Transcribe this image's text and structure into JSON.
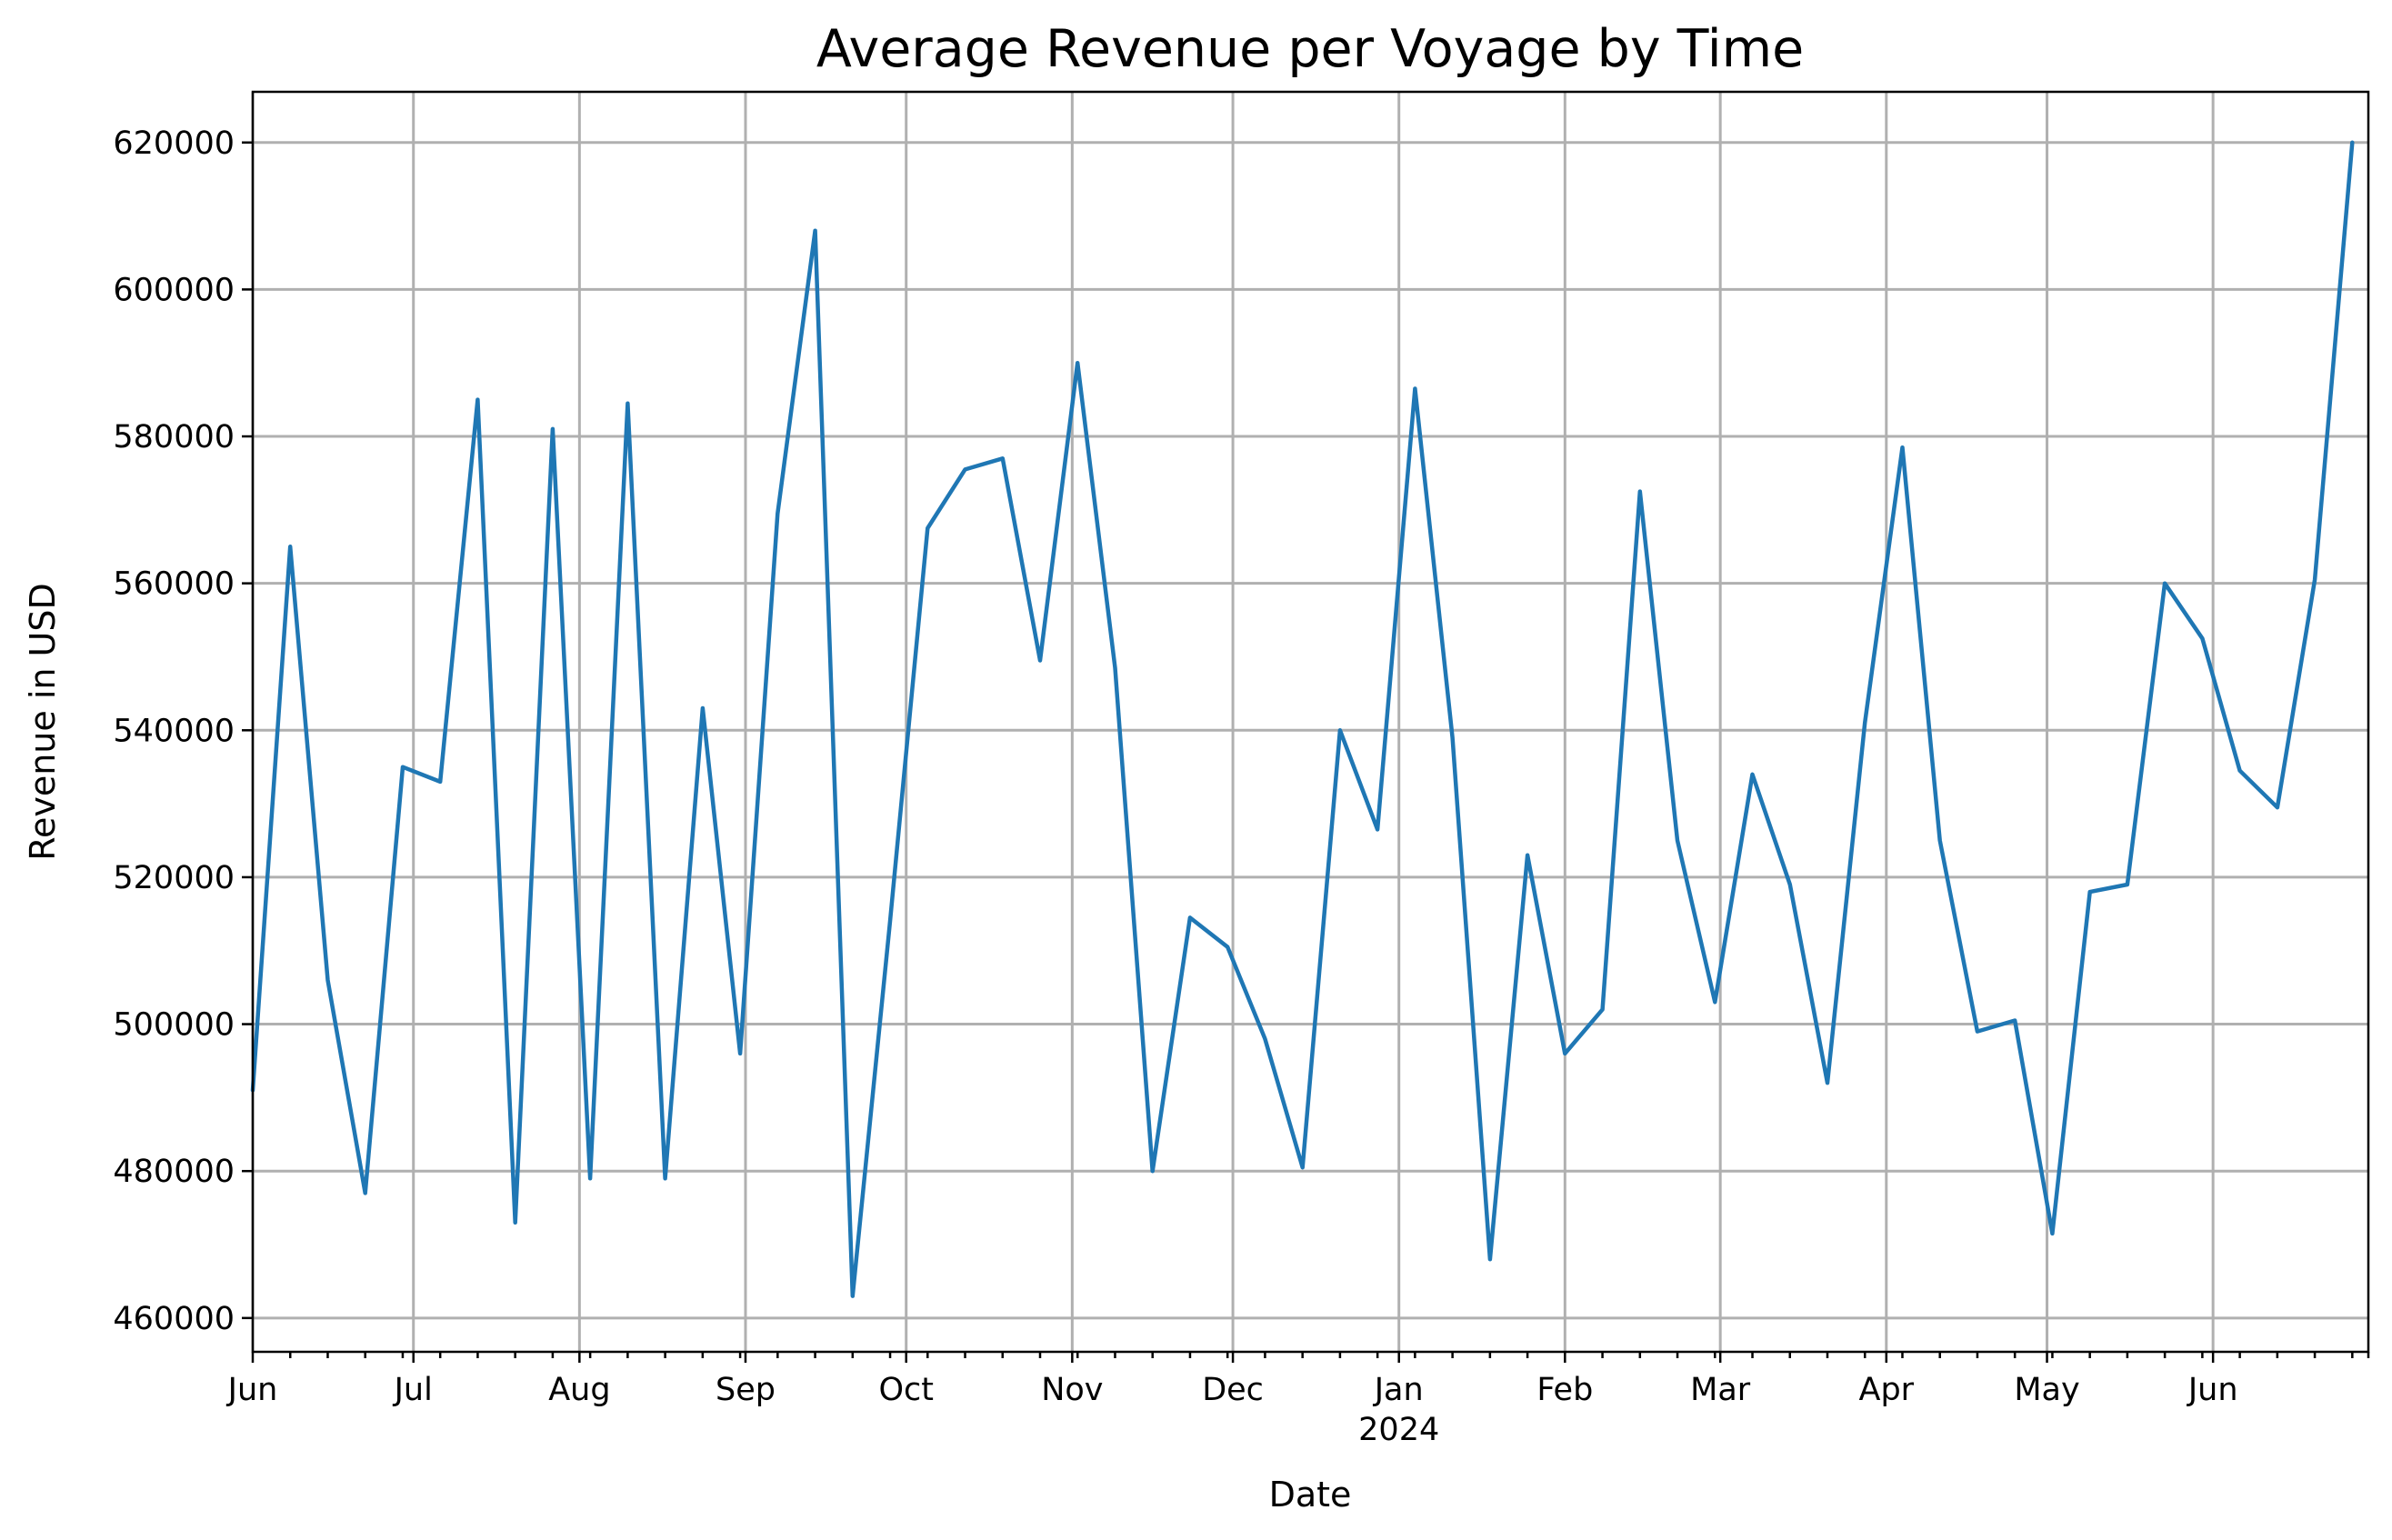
{
  "chart_data": {
    "type": "line",
    "title": "Average Revenue per Voyage by Time",
    "xlabel": "Date",
    "ylabel": "Revenue in USD",
    "grid": true,
    "legend": "none",
    "line_color": "#1f77b4",
    "xlim": [
      "2023-06-01",
      "2024-06-30"
    ],
    "ylim": [
      455400,
      626900
    ],
    "yticks": [
      460000,
      480000,
      500000,
      520000,
      540000,
      560000,
      580000,
      600000,
      620000
    ],
    "xticks": [
      {
        "date": "2023-06-01",
        "label": "Jun"
      },
      {
        "date": "2023-07-01",
        "label": "Jul"
      },
      {
        "date": "2023-08-01",
        "label": "Aug"
      },
      {
        "date": "2023-09-01",
        "label": "Sep"
      },
      {
        "date": "2023-10-01",
        "label": "Oct"
      },
      {
        "date": "2023-11-01",
        "label": "Nov"
      },
      {
        "date": "2023-12-01",
        "label": "Dec"
      },
      {
        "date": "2024-01-01",
        "label": "Jan",
        "sublabel": "2024"
      },
      {
        "date": "2024-02-01",
        "label": "Feb"
      },
      {
        "date": "2024-03-01",
        "label": "Mar"
      },
      {
        "date": "2024-04-01",
        "label": "Apr"
      },
      {
        "date": "2024-05-01",
        "label": "May"
      },
      {
        "date": "2024-06-01",
        "label": "Jun"
      }
    ],
    "x": [
      "2023-06-01",
      "2023-06-08",
      "2023-06-15",
      "2023-06-22",
      "2023-06-29",
      "2023-07-06",
      "2023-07-13",
      "2023-07-20",
      "2023-07-27",
      "2023-08-03",
      "2023-08-10",
      "2023-08-17",
      "2023-08-24",
      "2023-08-31",
      "2023-09-07",
      "2023-09-14",
      "2023-09-21",
      "2023-09-28",
      "2023-10-05",
      "2023-10-12",
      "2023-10-19",
      "2023-10-26",
      "2023-11-02",
      "2023-11-09",
      "2023-11-16",
      "2023-11-23",
      "2023-11-30",
      "2023-12-07",
      "2023-12-14",
      "2023-12-21",
      "2023-12-28",
      "2024-01-04",
      "2024-01-11",
      "2024-01-18",
      "2024-01-25",
      "2024-02-01",
      "2024-02-08",
      "2024-02-15",
      "2024-02-22",
      "2024-02-29",
      "2024-03-07",
      "2024-03-14",
      "2024-03-21",
      "2024-03-28",
      "2024-04-04",
      "2024-04-11",
      "2024-04-18",
      "2024-04-25",
      "2024-05-02",
      "2024-05-09",
      "2024-05-16",
      "2024-05-23",
      "2024-05-30",
      "2024-06-06",
      "2024-06-13",
      "2024-06-20",
      "2024-06-27"
    ],
    "series": [
      {
        "values": [
          491000,
          565000,
          506000,
          477000,
          535000,
          533000,
          585000,
          473000,
          581000,
          479000,
          584500,
          479000,
          543000,
          496000,
          569500,
          608000,
          463000,
          514000,
          567500,
          575500,
          577000,
          549500,
          590000,
          548500,
          480000,
          514500,
          510500,
          498000,
          480500,
          540000,
          526500,
          586500,
          539000,
          468000,
          523000,
          496000,
          502000,
          572500,
          525000,
          503000,
          534000,
          519000,
          492000,
          541000,
          578500,
          525000,
          499000,
          500500,
          471500,
          518000,
          519000,
          560000,
          552500,
          534500,
          529500,
          560500,
          620000
        ]
      }
    ]
  }
}
